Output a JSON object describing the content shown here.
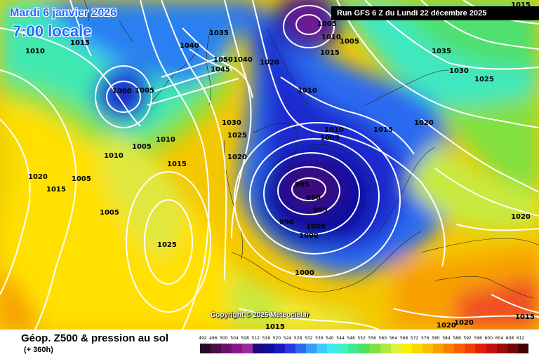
{
  "date_text": "Mardi 6 janvier 2026",
  "time_text": "7:00 locale",
  "run_text": "Run GFS 6 Z du Lundi 22 décembre 2025",
  "copyright": "Copyright © 2025 Meteociel.fr",
  "title": "Géop. Z500 & pression au sol",
  "subtitle": "(+ 360h)",
  "scale": {
    "values": [
      "492",
      "496",
      "500",
      "504",
      "508",
      "512",
      "516",
      "520",
      "524",
      "528",
      "532",
      "536",
      "540",
      "544",
      "548",
      "552",
      "556",
      "560",
      "564",
      "568",
      "572",
      "576",
      "580",
      "584",
      "588",
      "592",
      "596",
      "600",
      "604",
      "608",
      "612"
    ],
    "colors": [
      "#2a0a2a",
      "#4a0e4a",
      "#6a126a",
      "#8a168a",
      "#9a2a9a",
      "#1a0a80",
      "#1010a0",
      "#1a1ac0",
      "#2a3ae0",
      "#2a6af0",
      "#3a9af8",
      "#40c8ff",
      "#40e8f0",
      "#40f0c0",
      "#40e890",
      "#50e060",
      "#80e040",
      "#b0e840",
      "#e0f040",
      "#f8f000",
      "#f8d800",
      "#f8c000",
      "#f8a000",
      "#f88000",
      "#f86000",
      "#f04000",
      "#e02000",
      "#c01010",
      "#a00a0a",
      "#700808",
      "#400404"
    ]
  },
  "isobar_labels": [
    {
      "text": "1015"
    },
    {
      "text": "1010"
    },
    {
      "text": "1035"
    },
    {
      "text": "1040"
    },
    {
      "text": "1050"
    },
    {
      "text": "1040"
    },
    {
      "text": "1045"
    },
    {
      "text": "1000"
    },
    {
      "text": "1005"
    },
    {
      "text": "1020"
    },
    {
      "text": "1005"
    },
    {
      "text": "1010"
    },
    {
      "text": "1005"
    },
    {
      "text": "1015"
    },
    {
      "text": "1035"
    },
    {
      "text": "1030"
    },
    {
      "text": "1025"
    },
    {
      "text": "1010"
    },
    {
      "text": "1030"
    },
    {
      "text": "1025"
    },
    {
      "text": "1020"
    },
    {
      "text": "1010"
    },
    {
      "text": "1005"
    },
    {
      "text": "1015"
    },
    {
      "text": "1020"
    },
    {
      "text": "1010"
    },
    {
      "text": "1005"
    },
    {
      "text": "1010"
    },
    {
      "text": "1015"
    },
    {
      "text": "1020"
    },
    {
      "text": "1015"
    },
    {
      "text": "1005"
    },
    {
      "text": "1005"
    },
    {
      "text": "985"
    },
    {
      "text": "990"
    },
    {
      "text": "995"
    },
    {
      "text": "990"
    },
    {
      "text": "1000"
    },
    {
      "text": "1000"
    },
    {
      "text": "1025"
    },
    {
      "text": "1020"
    },
    {
      "text": "1000"
    },
    {
      "text": "1015"
    },
    {
      "text": "1015"
    },
    {
      "text": "1020"
    },
    {
      "text": "1020"
    },
    {
      "text": "1015"
    }
  ]
}
